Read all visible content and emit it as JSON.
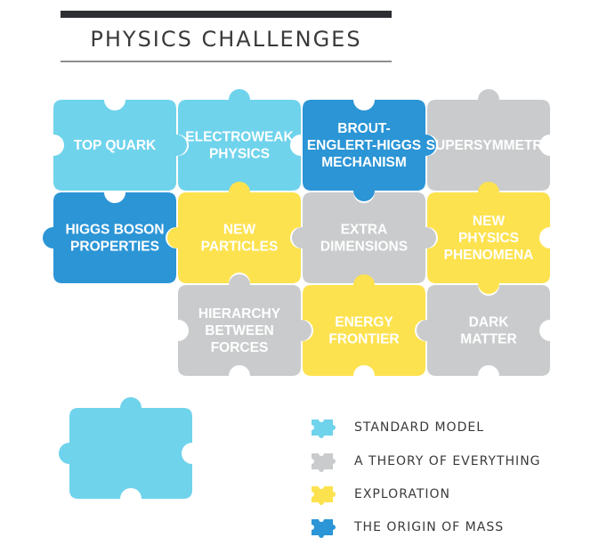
{
  "header": {
    "title": "PHYSICS CHALLENGES"
  },
  "colors": {
    "standard": "#6fd3ec",
    "theory": "#c9cbcc",
    "exploration": "#fde24f",
    "origin": "#2b95d6"
  },
  "pieces": [
    {
      "name": "piece-top-quark",
      "category": "standard",
      "lines": [
        "TOP QUARK"
      ]
    },
    {
      "name": "piece-electroweak-physics",
      "category": "standard",
      "lines": [
        "ELECTROWEAK",
        "PHYSICS"
      ]
    },
    {
      "name": "piece-brout-englert-higgs",
      "category": "origin",
      "lines": [
        "BROUT-",
        "ENGLERT-HIGGS",
        "MECHANISM"
      ]
    },
    {
      "name": "piece-supersymmetry",
      "category": "theory",
      "lines": [
        "SUPERSYMMETRY"
      ]
    },
    {
      "name": "piece-higgs-boson-properties",
      "category": "origin",
      "lines": [
        "HIGGS BOSON",
        "PROPERTIES"
      ]
    },
    {
      "name": "piece-new-particles",
      "category": "exploration",
      "lines": [
        "NEW",
        "PARTICLES"
      ]
    },
    {
      "name": "piece-extra-dimensions",
      "category": "theory",
      "lines": [
        "EXTRA",
        "DIMENSIONS"
      ]
    },
    {
      "name": "piece-new-physics-phenomena",
      "category": "exploration",
      "lines": [
        "NEW",
        "PHYSICS",
        "PHENOMENA"
      ]
    },
    {
      "name": "piece-hierarchy-between-forces",
      "category": "theory",
      "lines": [
        "HIERARCHY",
        "BETWEEN",
        "FORCES"
      ]
    },
    {
      "name": "piece-energy-frontier",
      "category": "exploration",
      "lines": [
        "ENERGY",
        "FRONTIER"
      ]
    },
    {
      "name": "piece-dark-matter",
      "category": "theory",
      "lines": [
        "DARK",
        "MATTER"
      ]
    }
  ],
  "legend": [
    {
      "category": "standard",
      "label": "STANDARD MODEL"
    },
    {
      "category": "theory",
      "label": "A THEORY OF EVERYTHING"
    },
    {
      "category": "exploration",
      "label": "EXPLORATION"
    },
    {
      "category": "origin",
      "label": "THE ORIGIN OF MASS"
    }
  ],
  "loose_piece": {
    "category": "standard"
  }
}
